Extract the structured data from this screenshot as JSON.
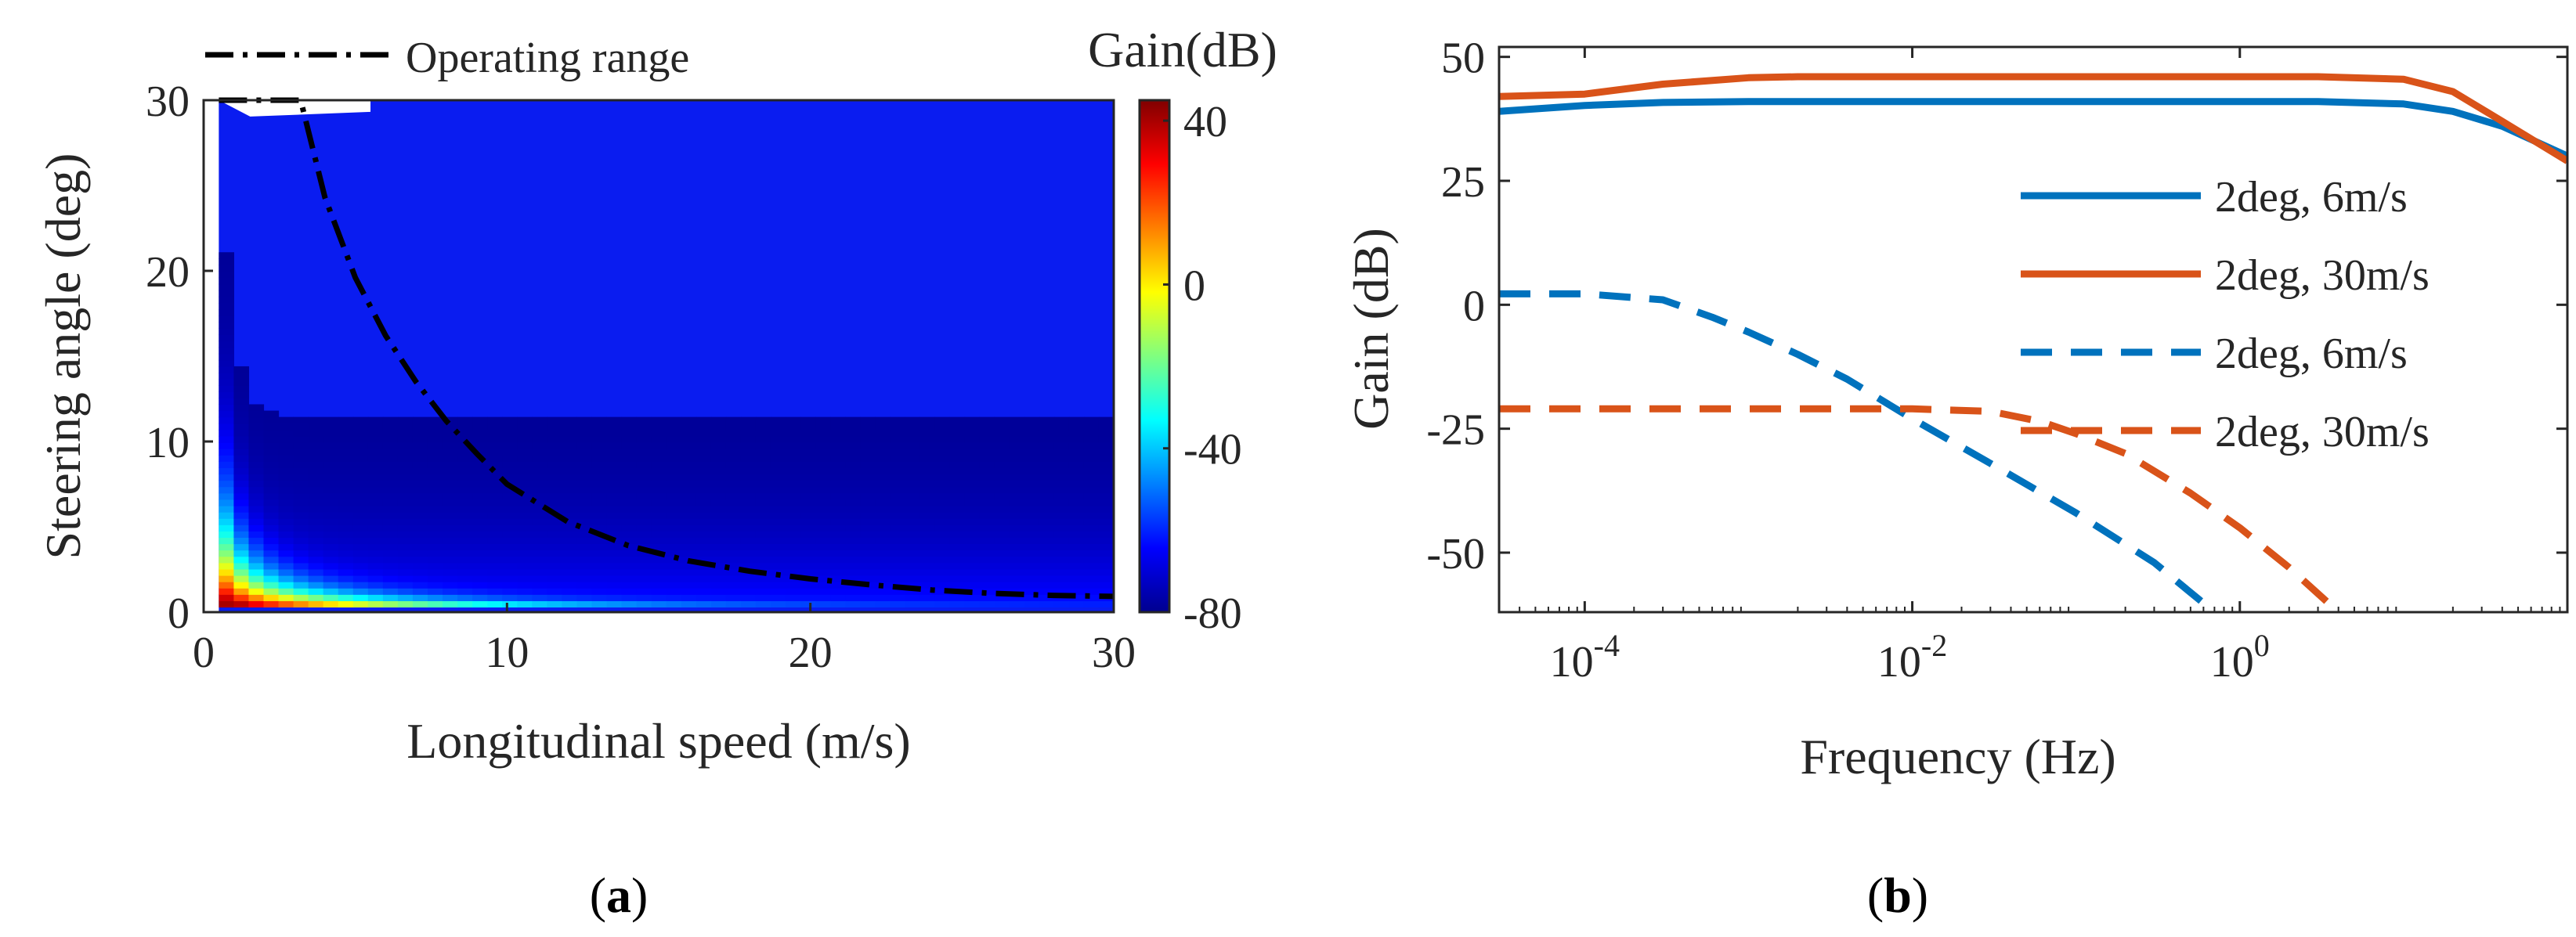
{
  "figure": {
    "captions": [
      {
        "open": "(",
        "letter": "a",
        "close": ")"
      },
      {
        "open": "(",
        "letter": "b",
        "close": ")"
      }
    ]
  },
  "chart_data": [
    {
      "type": "heatmap",
      "panel": "a",
      "xlabel": "Longitudinal speed (m/s)",
      "ylabel": "Steering angle (deg)",
      "xlim": [
        0,
        30
      ],
      "ylim": [
        0,
        30
      ],
      "x_ticks": [
        0,
        10,
        20,
        30
      ],
      "x_tick_labels": [
        "0",
        "10",
        "20",
        "30"
      ],
      "y_ticks": [
        0,
        10,
        20,
        30
      ],
      "y_tick_labels": [
        "0",
        "10",
        "20",
        "30"
      ],
      "colorbar": {
        "title": "Gain(dB)",
        "range": [
          -80,
          45
        ],
        "ticks": [
          40,
          0,
          -40,
          -80
        ],
        "tick_labels": [
          "40",
          "0",
          "-40",
          "-80"
        ],
        "colormap": "jet"
      },
      "legend": {
        "position": "top",
        "entries": [
          {
            "name": "Operating range",
            "style": "dash-dot",
            "color": "#000000"
          }
        ]
      },
      "operating_range": {
        "x": [
          0.5,
          3.2,
          4,
          5,
          6,
          7,
          8,
          9,
          10,
          12,
          14,
          16,
          18,
          20,
          22,
          24,
          26,
          28,
          30
        ],
        "y": [
          30,
          30,
          24.3,
          19.6,
          16.2,
          13.5,
          11.2,
          9.3,
          7.5,
          5.3,
          3.9,
          3.0,
          2.4,
          1.95,
          1.6,
          1.3,
          1.1,
          0.98,
          0.92
        ]
      },
      "blank_region": {
        "x": [
          0.5,
          5.5
        ],
        "y": [
          29.5,
          30
        ]
      }
    },
    {
      "type": "line",
      "panel": "b",
      "xlabel": "Frequency (Hz)",
      "ylabel": "Gain (dB)",
      "xscale": "log",
      "xlim": [
        3e-05,
        100
      ],
      "ylim": [
        -62,
        52
      ],
      "x_ticks": [
        0.0001,
        0.01,
        1
      ],
      "x_tick_labels": [
        {
          "base": "10",
          "exp": "-4"
        },
        {
          "base": "10",
          "exp": "-2"
        },
        {
          "base": "10",
          "exp": "0"
        }
      ],
      "y_ticks": [
        50,
        25,
        0,
        -25,
        -50
      ],
      "y_tick_labels": [
        "50",
        "25",
        "0",
        "-25",
        "-50"
      ],
      "legend": {
        "position": "right"
      },
      "series": [
        {
          "name": "2deg, 6m/s",
          "color": "#0072BD",
          "dash": "solid",
          "x": [
            3e-05,
            0.0001,
            0.0003,
            0.001,
            0.01,
            0.1,
            1,
            3,
            10,
            20,
            40,
            100
          ],
          "y": [
            39,
            40.2,
            40.8,
            41,
            41,
            41,
            41,
            41,
            40.5,
            39,
            36,
            30
          ]
        },
        {
          "name": "2deg, 30m/s",
          "color": "#D95319",
          "dash": "solid",
          "x": [
            3e-05,
            0.0001,
            0.0003,
            0.001,
            0.002,
            0.01,
            0.1,
            1,
            3,
            10,
            20,
            40,
            100
          ],
          "y": [
            42,
            42.5,
            44.5,
            45.8,
            46,
            46,
            46,
            46,
            46,
            45.5,
            43,
            37,
            29
          ]
        },
        {
          "name": "2deg, 6m/s",
          "color": "#0072BD",
          "dash": "dashed",
          "x": [
            3e-05,
            0.0001,
            0.0003,
            0.0006,
            0.001,
            0.002,
            0.004,
            0.01,
            0.03,
            0.1,
            0.3,
            0.7
          ],
          "y": [
            2.2,
            2.2,
            1,
            -2.5,
            -5.5,
            -10,
            -15,
            -23,
            -32,
            -42,
            -52,
            -62
          ]
        },
        {
          "name": "2deg, 30m/s",
          "color": "#D95319",
          "dash": "dashed",
          "x": [
            3e-05,
            0.001,
            0.01,
            0.03,
            0.06,
            0.1,
            0.2,
            0.5,
            1,
            2,
            4
          ],
          "y": [
            -21,
            -21,
            -21,
            -21.5,
            -23.5,
            -26,
            -30,
            -38,
            -45,
            -53,
            -62
          ]
        }
      ]
    }
  ]
}
